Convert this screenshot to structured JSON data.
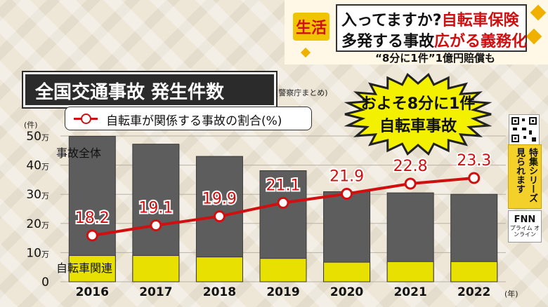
{
  "header": {
    "topic_badge": "生活",
    "headline_line1_part1": "入ってますか?",
    "headline_line1_part2": "自転車保険",
    "headline_line2_part1": "多発する事故",
    "headline_line2_part2": "広がる義務化",
    "subline": "“8分に1件”1億円賠償も"
  },
  "title": "全国交通事故 発生件数",
  "source": "(警察庁まとめ)",
  "legend_label": "自転車が関係する事故の割合(%)",
  "callout": {
    "line1": "およそ8分に1件",
    "line2": "自転車事故"
  },
  "side": {
    "text1": "特集シリーズ",
    "text2": "見られます",
    "fnn": "FNN",
    "fnn_sub": "プライム オンライン"
  },
  "colors": {
    "total_bar": "#5d5d5d",
    "bicycle_bar": "#e8e000",
    "ratio_line": "#d01010",
    "title_bg": "#2b2b2b",
    "badge": "#f0c400"
  },
  "chart_data": {
    "type": "bar",
    "categories": [
      "2016",
      "2017",
      "2018",
      "2019",
      "2020",
      "2021",
      "2022"
    ],
    "x_unit": "(年)",
    "y_unit": "(件)",
    "y_ticks": [
      "0",
      "10万",
      "20万",
      "30万",
      "40万",
      "50万"
    ],
    "ylim": [
      0,
      500000
    ],
    "series": [
      {
        "name": "事故全体",
        "values": [
          499000,
          472000,
          430000,
          381000,
          309000,
          305000,
          300000
        ]
      },
      {
        "name": "自転車関連",
        "values": [
          90000,
          90000,
          85000,
          80000,
          67000,
          69000,
          69000
        ]
      },
      {
        "name": "自転車が関係する事故の割合(%)",
        "type": "line",
        "values": [
          18.2,
          19.1,
          19.9,
          21.1,
          21.9,
          22.8,
          23.3
        ]
      }
    ],
    "ratio_labels": [
      "18.2",
      "19.1",
      "19.9",
      "21.1",
      "21.9",
      "22.8",
      "23.3"
    ]
  }
}
